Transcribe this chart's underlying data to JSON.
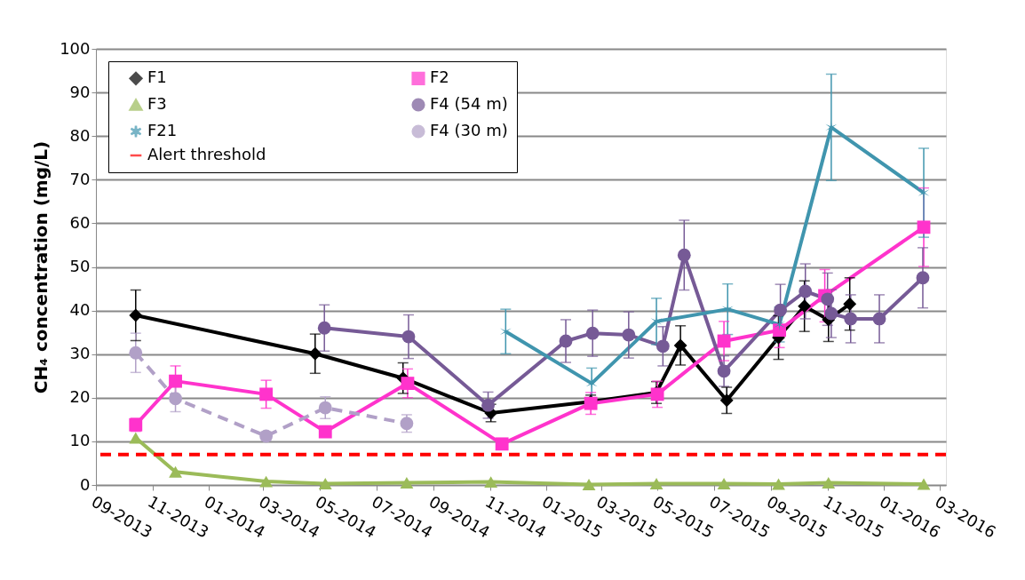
{
  "chart_data": {
    "type": "line",
    "ylabel": "CH₄ concentration (mg/L)",
    "xlim": [
      "2013-09-01",
      "2016-03-08"
    ],
    "xticks": [
      {
        "value": "2013-09-01",
        "label": "09-2013"
      },
      {
        "value": "2013-11-01",
        "label": "11-2013"
      },
      {
        "value": "2014-01-01",
        "label": "01-2014"
      },
      {
        "value": "2014-03-01",
        "label": "03-2014"
      },
      {
        "value": "2014-05-01",
        "label": "05-2014"
      },
      {
        "value": "2014-07-01",
        "label": "07-2014"
      },
      {
        "value": "2014-09-01",
        "label": "09-2014"
      },
      {
        "value": "2014-11-01",
        "label": "11-2014"
      },
      {
        "value": "2015-01-01",
        "label": "01-2015"
      },
      {
        "value": "2015-03-01",
        "label": "03-2015"
      },
      {
        "value": "2015-05-01",
        "label": "05-2015"
      },
      {
        "value": "2015-07-01",
        "label": "07-2015"
      },
      {
        "value": "2015-09-01",
        "label": "09-2015"
      },
      {
        "value": "2015-11-01",
        "label": "11-2015"
      },
      {
        "value": "2016-01-01",
        "label": "01-2016"
      },
      {
        "value": "2016-03-01",
        "label": "03-2016"
      }
    ],
    "ylim": [
      0,
      100
    ],
    "yticks": [
      0,
      10,
      20,
      30,
      40,
      50,
      60,
      70,
      80,
      90,
      100
    ],
    "grid": "y",
    "legend": "top left",
    "series": [
      {
        "name": "F1",
        "color": "#000000",
        "marker": "diamond",
        "line_style": "solid",
        "x": [
          "2013-10-14",
          "2014-04-26",
          "2014-07-30",
          "2014-11-02",
          "2015-02-18",
          "2015-04-30",
          "2015-05-26",
          "2015-07-15",
          "2015-09-09",
          "2015-10-07",
          "2015-11-02",
          "2015-11-25"
        ],
        "values": [
          38.9,
          30.1,
          24.5,
          16.5,
          19.1,
          21.2,
          32,
          19.4,
          33.8,
          41,
          37.9,
          41.5
        ],
        "errors": [
          5.8,
          4.5,
          3.5,
          2,
          1.5,
          2.5,
          4.5,
          3,
          5,
          5.8,
          5,
          6
        ]
      },
      {
        "name": "F2",
        "color": "#ff33cc",
        "marker": "square",
        "line_style": "solid",
        "x": [
          "2013-10-14",
          "2013-11-26",
          "2014-03-04",
          "2014-05-07",
          "2014-08-04",
          "2014-11-14",
          "2015-02-18",
          "2015-05-01",
          "2015-07-12",
          "2015-09-10",
          "2015-10-29",
          "2016-02-13"
        ],
        "values": [
          13.8,
          23.8,
          20.8,
          12.2,
          23.3,
          9.4,
          18.7,
          20.8,
          33,
          35.5,
          43.4,
          59.1
        ],
        "errors": [
          1.5,
          3.5,
          3.2,
          null,
          3.3,
          null,
          2.5,
          3,
          4.5,
          4,
          6,
          9
        ]
      },
      {
        "name": "F3",
        "color": "#9bbb59",
        "marker": "triangle",
        "line_style": "solid",
        "x": [
          "2013-10-14",
          "2013-11-26",
          "2014-03-04",
          "2014-05-07",
          "2014-08-03",
          "2014-11-02",
          "2015-02-16",
          "2015-04-30",
          "2015-07-12",
          "2015-09-09",
          "2015-11-02",
          "2016-02-13"
        ],
        "values": [
          10.8,
          3,
          0.8,
          0.3,
          0.5,
          0.7,
          0.1,
          0.3,
          0.3,
          0.2,
          0.5,
          0.2
        ]
      },
      {
        "name": "F4 (54 m)",
        "color": "#765a96",
        "marker": "circle",
        "line_style": "solid",
        "x": [
          "2014-05-06",
          "2014-08-05",
          "2014-10-30",
          "2015-01-22",
          "2015-02-20",
          "2015-03-31",
          "2015-05-07",
          "2015-05-30",
          "2015-07-12",
          "2015-09-11",
          "2015-10-08",
          "2015-11-01",
          "2015-11-05",
          "2015-11-26",
          "2015-12-27",
          "2016-02-12"
        ],
        "values": [
          36,
          34,
          18.3,
          33,
          34.8,
          34.4,
          31.8,
          52.7,
          26.1,
          40.1,
          44.4,
          42.6,
          39.3,
          38.1,
          38.1,
          47.5
        ],
        "errors": [
          5.3,
          5,
          3,
          4.9,
          5.3,
          5.3,
          4.5,
          8,
          3.5,
          5.9,
          6.3,
          6,
          5.5,
          5.5,
          5.5,
          6.9
        ]
      },
      {
        "name": "F21",
        "color": "#4095ae",
        "marker": "cross",
        "line_style": "solid",
        "x": [
          "2014-11-18",
          "2015-02-19",
          "2015-04-30",
          "2015-07-16",
          "2015-09-10",
          "2015-11-05",
          "2016-02-13"
        ],
        "values": [
          35.2,
          23.3,
          37.5,
          40.3,
          36.8,
          82,
          67
        ],
        "errors": [
          5.1,
          3.5,
          5.3,
          5.8,
          4,
          12.2,
          10.2
        ]
      },
      {
        "name": "F4 (30 m)",
        "color": "#b1a0c7",
        "marker": "circle",
        "line_style": "dashed",
        "x": [
          "2013-10-14",
          "2013-11-26",
          "2014-03-04",
          "2014-05-07",
          "2014-08-03"
        ],
        "values": [
          30.3,
          19.8,
          11.2,
          17.7,
          14.1
        ],
        "errors": [
          4.5,
          3,
          1,
          2.5,
          2
        ]
      }
    ],
    "ref_lines": [
      {
        "axis": "y",
        "value": 7,
        "label": "Alert threshold",
        "color": "#ff0000",
        "line_style": "dashed"
      }
    ]
  }
}
